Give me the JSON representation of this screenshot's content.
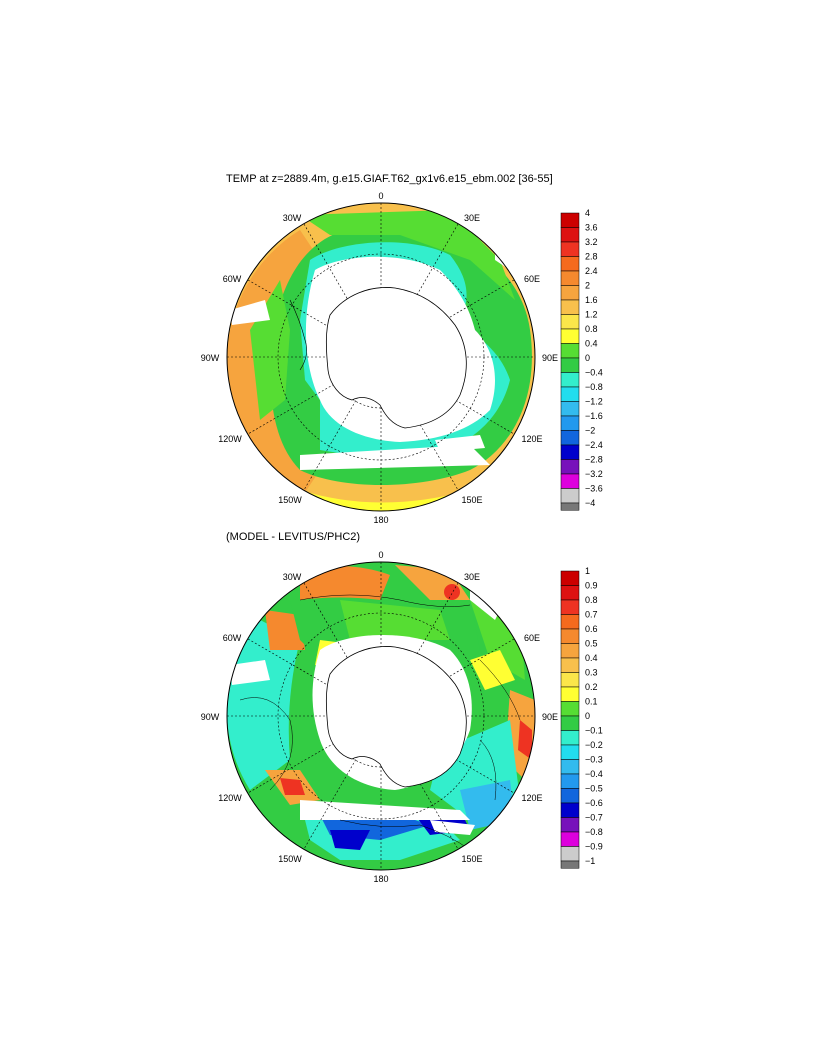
{
  "panels": [
    {
      "title": "TEMP at z=2889.4m, g.e15.GIAF.T62_gx1v6.e15_ebm.002 [36-55]",
      "longitude_labels": [
        "0",
        "30E",
        "60E",
        "90E",
        "120E",
        "150E",
        "180",
        "150W",
        "120W",
        "90W",
        "60W",
        "30W"
      ],
      "colorbar": {
        "labels": [
          "4",
          "3.6",
          "3.2",
          "2.8",
          "2.4",
          "2",
          "1.6",
          "1.2",
          "0.8",
          "0.4",
          "0",
          "−0.4",
          "−0.8",
          "−1.2",
          "−1.6",
          "−2",
          "−2.4",
          "−2.8",
          "−3.2",
          "−3.6",
          "−4"
        ],
        "colors": [
          "#cc0000",
          "#dd1111",
          "#ee3322",
          "#f56a1e",
          "#f5892e",
          "#f6a43e",
          "#f8c04c",
          "#fbe64a",
          "#ffff33",
          "#56dd33",
          "#33cc44",
          "#33eecc",
          "#22ddee",
          "#33bbee",
          "#2299ee",
          "#1166dd",
          "#0000cc",
          "#7711bb",
          "#dd00dd",
          "#cccccc",
          "#777777"
        ]
      }
    },
    {
      "title": "(MODEL - LEVITUS/PHC2)",
      "longitude_labels": [
        "0",
        "30E",
        "60E",
        "90E",
        "120E",
        "150E",
        "180",
        "150W",
        "120W",
        "90W",
        "60W",
        "30W"
      ],
      "colorbar": {
        "labels": [
          "1",
          "0.9",
          "0.8",
          "0.7",
          "0.6",
          "0.5",
          "0.4",
          "0.3",
          "0.2",
          "0.1",
          "0",
          "−0.1",
          "−0.2",
          "−0.3",
          "−0.4",
          "−0.5",
          "−0.6",
          "−0.7",
          "−0.8",
          "−0.9",
          "−1"
        ],
        "colors": [
          "#cc0000",
          "#dd1111",
          "#ee3322",
          "#f56a1e",
          "#f5892e",
          "#f6a43e",
          "#f8c04c",
          "#fbe64a",
          "#ffff33",
          "#56dd33",
          "#33cc44",
          "#33eecc",
          "#22ddee",
          "#33bbee",
          "#2299ee",
          "#1166dd",
          "#0000cc",
          "#7711bb",
          "#dd00dd",
          "#cccccc",
          "#777777"
        ]
      }
    }
  ]
}
